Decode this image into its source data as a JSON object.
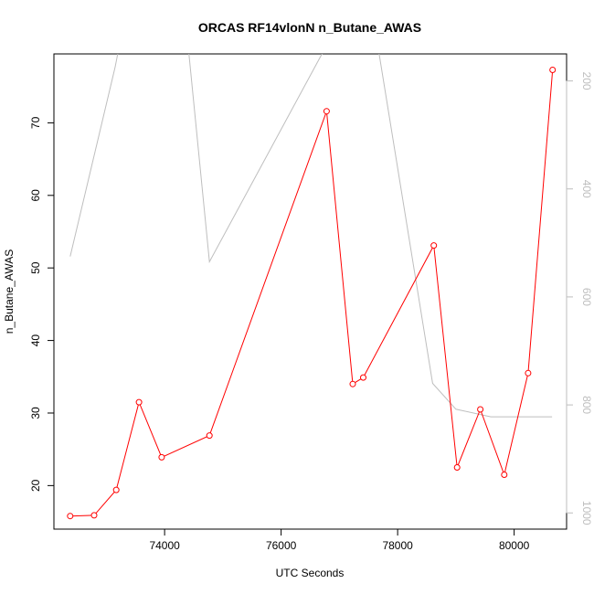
{
  "chart_data": {
    "type": "line",
    "title": "ORCAS RF14vlonN n_Butane_AWAS",
    "xlabel": "UTC Seconds",
    "ylabel": "n_Butane_AWAS",
    "xlim": [
      72100,
      80900
    ],
    "ylim": [
      14.0,
      79.5
    ],
    "x_ticks": [
      74000,
      76000,
      78000,
      80000
    ],
    "x_tick_labels": [
      "74000",
      "76000",
      "78000",
      "80000"
    ],
    "y_ticks": [
      20,
      30,
      40,
      50,
      60,
      70
    ],
    "y_tick_labels": [
      "20",
      "30",
      "40",
      "50",
      "60",
      "70"
    ],
    "y2_lim": [
      1030,
      150
    ],
    "y2_ticks": [
      200,
      400,
      600,
      800,
      1000
    ],
    "y2_tick_labels": [
      "200",
      "400",
      "600",
      "800",
      "1000"
    ],
    "y2_reversed": true,
    "colors": {
      "main": "#ff0000",
      "secondary": "#bebebe"
    },
    "series": [
      {
        "axis": "left",
        "style": "line-with-open-circles",
        "color": "#ff0000",
        "x": [
          72380,
          72790,
          73170,
          73560,
          73950,
          74770,
          76780,
          77230,
          77410,
          78620,
          79020,
          79420,
          79830,
          80240,
          80660
        ],
        "values": [
          15.8,
          15.9,
          19.4,
          31.5,
          23.9,
          26.9,
          71.6,
          34.0,
          34.9,
          53.1,
          22.5,
          30.5,
          21.5,
          35.5,
          77.3
        ]
      },
      {
        "axis": "right",
        "style": "line",
        "color": "#bebebe",
        "x": [
          72380,
          73150,
          73470,
          74280,
          74770,
          76700,
          77600,
          78600,
          79000,
          79600,
          80650
        ],
        "values": [
          525,
          175,
          0,
          0,
          535,
          150,
          95,
          760,
          808,
          822,
          822
        ]
      }
    ]
  }
}
